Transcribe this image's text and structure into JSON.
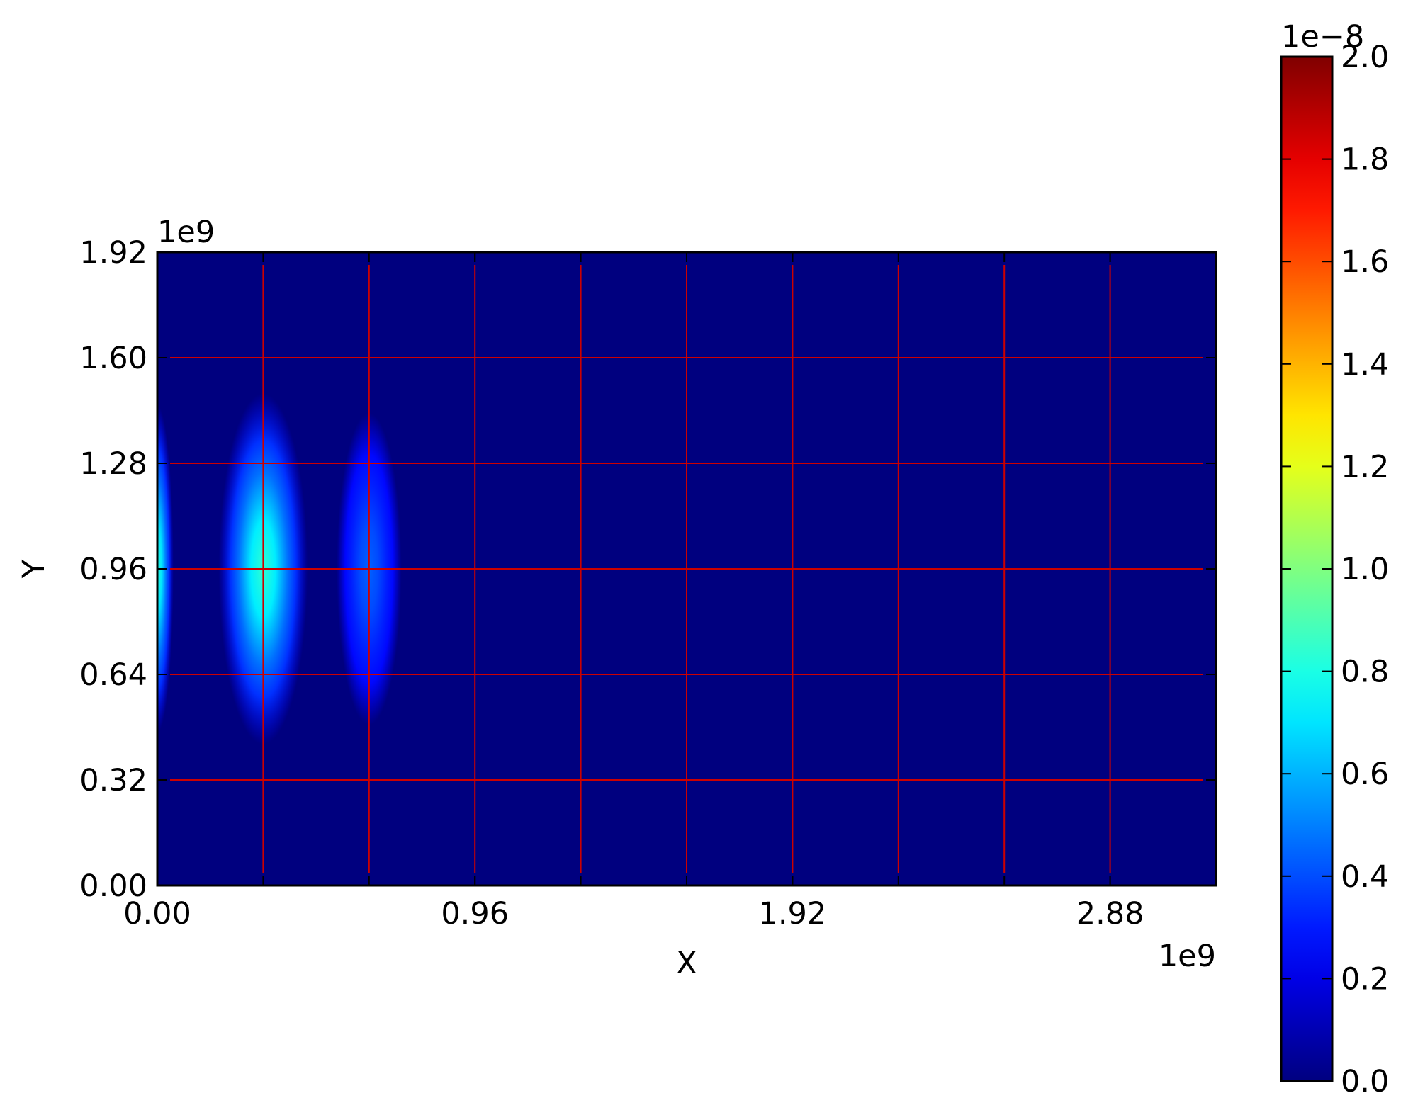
{
  "chart_data": {
    "type": "heatmap",
    "title": "",
    "xlabel": "X",
    "ylabel": "Y",
    "x_offset": "1e9",
    "y_offset": "1e9",
    "xlim": [
      0.0,
      3.2
    ],
    "ylim": [
      0.0,
      1.92
    ],
    "xticks": [
      0.0,
      0.96,
      1.92,
      2.88
    ],
    "xtick_labels": [
      "0.00",
      "0.96",
      "1.92",
      "2.88"
    ],
    "yticks": [
      0.0,
      0.32,
      0.64,
      0.96,
      1.28,
      1.6,
      1.92
    ],
    "ytick_labels": [
      "0.00",
      "0.32",
      "0.64",
      "0.96",
      "1.28",
      "1.60",
      "1.92"
    ],
    "grid": true,
    "grid_color": "#cc0000",
    "grid_x": [
      0.32,
      0.64,
      0.96,
      1.28,
      1.6,
      1.92,
      2.24,
      2.56,
      2.88
    ],
    "grid_y": [
      0.32,
      0.64,
      0.96,
      1.28,
      1.6
    ],
    "colormap": "jet",
    "background_value": 0.0,
    "colorbar": {
      "offset": "1e−8",
      "vmin": 0.0,
      "vmax": 2.0,
      "ticks": [
        0.0,
        0.2,
        0.4,
        0.6,
        0.8,
        1.0,
        1.2,
        1.4,
        1.6,
        1.8,
        2.0
      ],
      "tick_labels": [
        "0.0",
        "0.2",
        "0.4",
        "0.6",
        "0.8",
        "1.0",
        "1.2",
        "1.4",
        "1.6",
        "1.8",
        "2.0"
      ]
    },
    "features": [
      {
        "x": 0.0,
        "y": 0.96,
        "sigma_x": 0.02,
        "sigma_y": 0.42,
        "peak": 0.6
      },
      {
        "x": 0.32,
        "y": 0.96,
        "sigma_x": 0.055,
        "sigma_y": 0.45,
        "peak": 0.62
      },
      {
        "x": 0.64,
        "y": 0.96,
        "sigma_x": 0.04,
        "sigma_y": 0.4,
        "peak": 0.22
      }
    ]
  }
}
